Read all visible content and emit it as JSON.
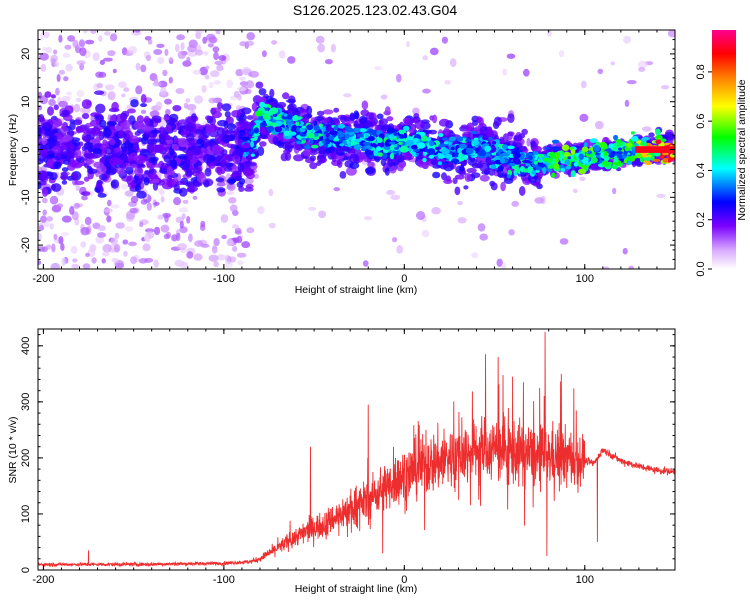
{
  "title": "S126.2025.123.02.43.G04",
  "chart_data": [
    {
      "type": "heatmap",
      "xlabel": "Height of straight line (km)",
      "ylabel": "Frequency (Hz)",
      "xlim": [
        -203,
        150
      ],
      "ylim": [
        -25,
        25
      ],
      "x_ticks": [
        "-200",
        "-100",
        "0",
        "100"
      ],
      "y_ticks": [
        "20",
        "10",
        "0",
        "-10",
        "-20"
      ],
      "colorbar": {
        "label": "Normalized spectral amplitude",
        "range": [
          0,
          0.97
        ],
        "ticks": [
          "0.0",
          "0.2",
          "0.4",
          "0.6",
          "0.8"
        ],
        "colormap": [
          "#ffffff",
          "#7a00ff",
          "#0000ff",
          "#00ffff",
          "#00ff00",
          "#ffff00",
          "#ff8000",
          "#ff0000",
          "#ff00a0"
        ]
      },
      "ridge": {
        "x": [
          -200,
          -150,
          -100,
          -85,
          -80,
          -70,
          -60,
          -50,
          -40,
          -30,
          -20,
          -10,
          0,
          10,
          20,
          30,
          40,
          50,
          60,
          70,
          75,
          80,
          90,
          100,
          110,
          120,
          130,
          140,
          150
        ],
        "y": [
          1,
          0,
          0,
          0,
          7,
          6,
          4,
          3,
          3,
          2,
          2,
          1,
          2,
          1,
          0,
          -1,
          1,
          -1,
          -2,
          -2,
          -3,
          -2,
          -2,
          -2,
          -1,
          -1,
          0,
          0,
          0
        ],
        "amplitude": [
          0.25,
          0.25,
          0.3,
          0.35,
          0.5,
          0.45,
          0.45,
          0.45,
          0.4,
          0.4,
          0.4,
          0.45,
          0.45,
          0.45,
          0.4,
          0.4,
          0.4,
          0.4,
          0.45,
          0.45,
          0.45,
          0.5,
          0.55,
          0.55,
          0.5,
          0.5,
          0.6,
          0.85,
          0.95
        ]
      }
    },
    {
      "type": "line",
      "xlabel": "Height of straight line (km)",
      "ylabel": "SNR (10 * v/v)",
      "xlim": [
        -203,
        150
      ],
      "ylim": [
        0,
        430
      ],
      "x_ticks": [
        "-200",
        "-100",
        "0",
        "100"
      ],
      "y_ticks": [
        "0",
        "100",
        "200",
        "300",
        "400"
      ],
      "color": "#ee2e2e",
      "envelope": {
        "x": [
          -203,
          -150,
          -100,
          -85,
          -80,
          -70,
          -60,
          -50,
          -40,
          -30,
          -20,
          -10,
          0,
          10,
          20,
          30,
          40,
          50,
          60,
          70,
          75,
          80,
          90,
          100,
          105,
          110,
          120,
          130,
          140,
          150
        ],
        "y": [
          10,
          10,
          12,
          15,
          20,
          40,
          60,
          75,
          90,
          110,
          125,
          150,
          170,
          185,
          195,
          205,
          215,
          215,
          210,
          205,
          200,
          205,
          200,
          195,
          190,
          215,
          195,
          185,
          178,
          175
        ]
      },
      "spikes": [
        {
          "x": -175,
          "y": 35
        },
        {
          "x": -52,
          "y": 220
        },
        {
          "x": -20,
          "y": 295
        },
        {
          "x": -12,
          "y": 30
        },
        {
          "x": -6,
          "y": 220
        },
        {
          "x": 12,
          "y": 250
        },
        {
          "x": 45,
          "y": 385
        },
        {
          "x": 52,
          "y": 380
        },
        {
          "x": 60,
          "y": 345
        },
        {
          "x": 66,
          "y": 335
        },
        {
          "x": 75,
          "y": 325
        },
        {
          "x": 78,
          "y": 425
        },
        {
          "x": 79,
          "y": 25
        },
        {
          "x": 87,
          "y": 350
        },
        {
          "x": 107,
          "y": 50
        }
      ]
    }
  ]
}
